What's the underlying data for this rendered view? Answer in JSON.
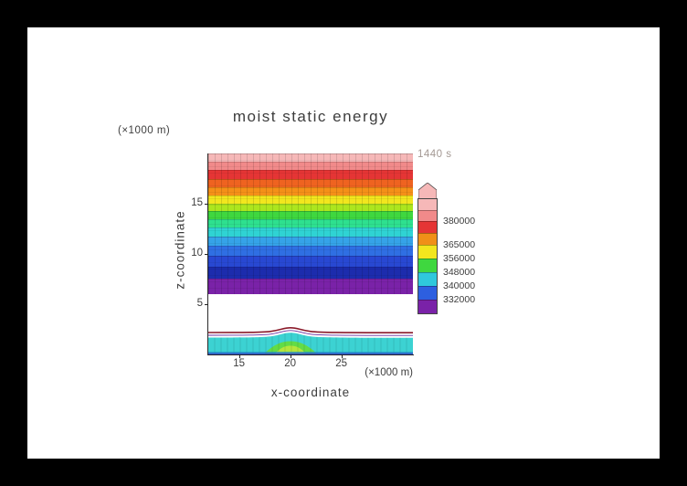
{
  "window": {
    "frame_color": "#000000",
    "canvas_color": "#ffffff"
  },
  "chart_data": {
    "type": "heatmap",
    "style": "filled-contour",
    "title": "moist static energy",
    "time_label": "1440 s",
    "xlabel": "x-coordinate",
    "x_unit": "(×1000 m)",
    "ylabel": "z-coordinate",
    "y_unit": "(×1000 m)",
    "x_range": [
      12,
      32
    ],
    "y_range": [
      0,
      20
    ],
    "x_ticks": [
      "15",
      "20",
      "25"
    ],
    "y_ticks": [
      "5",
      "10",
      "15"
    ],
    "grid": true,
    "colorbar": {
      "position": "right",
      "arrow_color": "#F6B8B8",
      "bands": [
        {
          "color": "#F6B8B8",
          "h": 12
        },
        {
          "color": "#F18A8A",
          "h": 12,
          "label": "380000"
        },
        {
          "color": "#E53535",
          "h": 13
        },
        {
          "color": "#F09018",
          "h": 13,
          "label": "365000"
        },
        {
          "color": "#F2E61E",
          "h": 15,
          "label": "356000"
        },
        {
          "color": "#3FD73F",
          "h": 15,
          "label": "348000"
        },
        {
          "color": "#2FC8DC",
          "h": 15,
          "label": "340000"
        },
        {
          "color": "#2D5FE0",
          "h": 15,
          "label": "332000"
        },
        {
          "color": "#7A22A8",
          "h": 15
        }
      ]
    },
    "bands": [
      {
        "color": "#F6B8B8",
        "z_top": 20.0,
        "z_bottom": 19.18
      },
      {
        "color": "#F18A8A",
        "z_top": 19.18,
        "z_bottom": 18.36
      },
      {
        "color": "#E53535",
        "z_top": 18.36,
        "z_bottom": 17.45
      },
      {
        "color": "#EF6320",
        "z_top": 17.45,
        "z_bottom": 16.64
      },
      {
        "color": "#F59018",
        "z_top": 16.64,
        "z_bottom": 15.82
      },
      {
        "color": "#F2E61E",
        "z_top": 15.82,
        "z_bottom": 15.0
      },
      {
        "color": "#ACE61E",
        "z_top": 15.0,
        "z_bottom": 14.27
      },
      {
        "color": "#3FD73F",
        "z_top": 14.27,
        "z_bottom": 13.45
      },
      {
        "color": "#2EE08F",
        "z_top": 13.45,
        "z_bottom": 12.64
      },
      {
        "color": "#2FD3D3",
        "z_top": 12.64,
        "z_bottom": 11.73
      },
      {
        "color": "#35A3E8",
        "z_top": 11.73,
        "z_bottom": 10.82
      },
      {
        "color": "#2F6FE3",
        "z_top": 10.82,
        "z_bottom": 9.82
      },
      {
        "color": "#2848D2",
        "z_top": 9.82,
        "z_bottom": 8.73
      },
      {
        "color": "#1C2CAD",
        "z_top": 8.73,
        "z_bottom": 7.55
      },
      {
        "color": "#7A22A8",
        "z_top": 7.55,
        "z_bottom": 6.0
      }
    ],
    "clear_layer": {
      "z_top": 6.0,
      "z_bottom": 2.82,
      "color": "#ffffff"
    },
    "surface_layer": {
      "z_top": 2.82,
      "z_bottom": 0,
      "bump_center_x": 20,
      "contour_line_color": "#8B1B2B",
      "secondary_line_color": "#6A2FA0",
      "fill_color": "#3CD2D2",
      "hump_color": "#63DC46",
      "hump_core_color": "#B4E63C",
      "bottom_line_colors": [
        "#2090CC",
        "#2E50C4"
      ]
    }
  }
}
